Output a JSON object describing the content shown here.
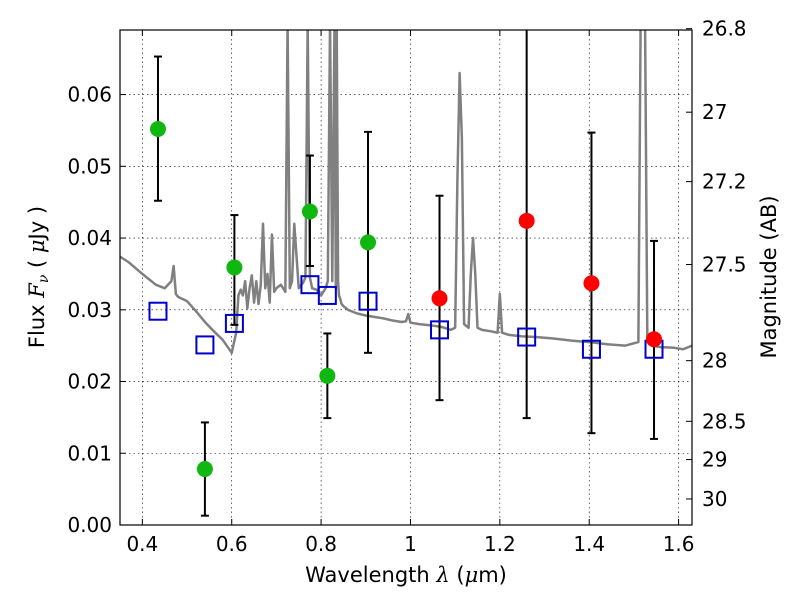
{
  "chart_data": {
    "type": "scatter",
    "xlabel": {
      "prefix": "Wavelength  ",
      "symbol": "λ",
      "suffix": " (",
      "unit_symbol": "μ",
      "unit_rest": "m)"
    },
    "ylabel": {
      "prefix": "Flux  ",
      "symbol": "F",
      "subscript": "ν",
      "suffix": "  ( ",
      "unit_symbol": "μ",
      "unit_rest": "Jy )"
    },
    "ylabel_right": "Magnitude (AB)",
    "xlim": [
      0.35,
      1.63
    ],
    "ylim": [
      0.0,
      0.069
    ],
    "grid": true,
    "x_ticks": [
      {
        "value": 0.4,
        "label": "0.4"
      },
      {
        "value": 0.6,
        "label": "0.6"
      },
      {
        "value": 0.8,
        "label": "0.8"
      },
      {
        "value": 1.0,
        "label": "1"
      },
      {
        "value": 1.2,
        "label": "1.2"
      },
      {
        "value": 1.4,
        "label": "1.4"
      },
      {
        "value": 1.6,
        "label": "1.6"
      }
    ],
    "y_ticks": [
      {
        "value": 0.0,
        "label": "0.00"
      },
      {
        "value": 0.01,
        "label": "0.01"
      },
      {
        "value": 0.02,
        "label": "0.02"
      },
      {
        "value": 0.03,
        "label": "0.03"
      },
      {
        "value": 0.04,
        "label": "0.04"
      },
      {
        "value": 0.05,
        "label": "0.05"
      },
      {
        "value": 0.06,
        "label": "0.06"
      }
    ],
    "right_ticks": [
      {
        "mag": 26.8,
        "label": "26.8"
      },
      {
        "mag": 27.0,
        "label": "27"
      },
      {
        "mag": 27.2,
        "label": "27.2"
      },
      {
        "mag": 27.5,
        "label": "27.5"
      },
      {
        "mag": 28.0,
        "label": "28"
      },
      {
        "mag": 28.5,
        "label": "28.5"
      },
      {
        "mag": 29.0,
        "label": "29"
      },
      {
        "mag": 30.0,
        "label": "30"
      }
    ],
    "series": [
      {
        "name": "observed-green",
        "color": "#11b711",
        "marker": "circle",
        "points": [
          {
            "x": 0.435,
            "y": 0.0552,
            "err_lo": 0.0452,
            "err_hi": 0.0653
          },
          {
            "x": 0.54,
            "y": 0.0078,
            "err_lo": 0.0013,
            "err_hi": 0.0143
          },
          {
            "x": 0.606,
            "y": 0.0359,
            "err_lo": 0.0279,
            "err_hi": 0.0432
          },
          {
            "x": 0.775,
            "y": 0.0437,
            "err_lo": 0.0361,
            "err_hi": 0.0515
          },
          {
            "x": 0.814,
            "y": 0.0208,
            "err_lo": 0.0149,
            "err_hi": 0.0267
          },
          {
            "x": 0.905,
            "y": 0.0394,
            "err_lo": 0.024,
            "err_hi": 0.0548
          }
        ]
      },
      {
        "name": "observed-red",
        "color": "#ff0000",
        "marker": "circle",
        "points": [
          {
            "x": 1.065,
            "y": 0.0316,
            "err_lo": 0.0174,
            "err_hi": 0.0459
          },
          {
            "x": 1.26,
            "y": 0.0424,
            "err_lo": 0.0149,
            "err_hi": 0.071
          },
          {
            "x": 1.405,
            "y": 0.0337,
            "err_lo": 0.0128,
            "err_hi": 0.0547
          },
          {
            "x": 1.545,
            "y": 0.0259,
            "err_lo": 0.012,
            "err_hi": 0.0396
          }
        ]
      },
      {
        "name": "model-photometry",
        "color": "#0000cc",
        "marker": "square-open",
        "points": [
          {
            "x": 0.435,
            "y": 0.0298
          },
          {
            "x": 0.54,
            "y": 0.0251
          },
          {
            "x": 0.606,
            "y": 0.0281
          },
          {
            "x": 0.775,
            "y": 0.0335
          },
          {
            "x": 0.814,
            "y": 0.032
          },
          {
            "x": 0.905,
            "y": 0.0312
          },
          {
            "x": 1.065,
            "y": 0.0272
          },
          {
            "x": 1.26,
            "y": 0.0262
          },
          {
            "x": 1.405,
            "y": 0.0245
          },
          {
            "x": 1.545,
            "y": 0.0245
          }
        ]
      }
    ],
    "spectrum": {
      "name": "model-spectrum",
      "color": "#808080",
      "x": [
        0.35,
        0.37,
        0.4,
        0.43,
        0.45,
        0.465,
        0.47,
        0.475,
        0.48,
        0.5,
        0.52,
        0.54,
        0.56,
        0.58,
        0.6,
        0.61,
        0.615,
        0.62,
        0.625,
        0.63,
        0.635,
        0.64,
        0.645,
        0.65,
        0.655,
        0.66,
        0.665,
        0.67,
        0.675,
        0.68,
        0.685,
        0.69,
        0.695,
        0.7,
        0.71,
        0.72,
        0.725,
        0.73,
        0.735,
        0.74,
        0.75,
        0.76,
        0.765,
        0.77,
        0.775,
        0.78,
        0.79,
        0.8,
        0.81,
        0.815,
        0.82,
        0.825,
        0.83,
        0.833,
        0.835,
        0.838,
        0.84,
        0.843,
        0.846,
        0.85,
        0.86,
        0.88,
        0.9,
        0.92,
        0.94,
        0.96,
        0.98,
        0.99,
        0.995,
        1.0,
        1.02,
        1.05,
        1.07,
        1.09,
        1.1,
        1.105,
        1.11,
        1.115,
        1.12,
        1.13,
        1.135,
        1.14,
        1.145,
        1.15,
        1.16,
        1.18,
        1.195,
        1.2,
        1.205,
        1.22,
        1.25,
        1.28,
        1.32,
        1.36,
        1.4,
        1.44,
        1.48,
        1.51,
        1.515,
        1.52,
        1.525,
        1.53,
        1.54,
        1.56,
        1.59,
        1.61,
        1.63
      ],
      "y": [
        0.0374,
        0.0366,
        0.035,
        0.0335,
        0.033,
        0.034,
        0.0361,
        0.0322,
        0.0318,
        0.0312,
        0.0298,
        0.0283,
        0.027,
        0.0258,
        0.024,
        0.0268,
        0.032,
        0.0328,
        0.032,
        0.034,
        0.0302,
        0.033,
        0.0348,
        0.031,
        0.034,
        0.0308,
        0.0335,
        0.042,
        0.033,
        0.035,
        0.031,
        0.0405,
        0.0325,
        0.033,
        0.0335,
        0.0325,
        0.07,
        0.033,
        0.034,
        0.042,
        0.033,
        0.0338,
        0.0345,
        0.07,
        0.0345,
        0.033,
        0.0328,
        0.032,
        0.033,
        0.034,
        0.07,
        0.034,
        0.07,
        0.033,
        0.07,
        0.034,
        0.032,
        0.0315,
        0.0308,
        0.0305,
        0.03,
        0.0295,
        0.0292,
        0.029,
        0.0288,
        0.0285,
        0.0283,
        0.0284,
        0.0294,
        0.0282,
        0.028,
        0.0278,
        0.0276,
        0.0272,
        0.0275,
        0.048,
        0.063,
        0.054,
        0.028,
        0.0275,
        0.035,
        0.04,
        0.035,
        0.0275,
        0.0272,
        0.027,
        0.0268,
        0.0322,
        0.0268,
        0.0265,
        0.0263,
        0.0262,
        0.026,
        0.0257,
        0.0255,
        0.0252,
        0.025,
        0.0255,
        0.07,
        0.07,
        0.07,
        0.026,
        0.025,
        0.0248,
        0.0247,
        0.0245,
        0.025
      ]
    }
  }
}
